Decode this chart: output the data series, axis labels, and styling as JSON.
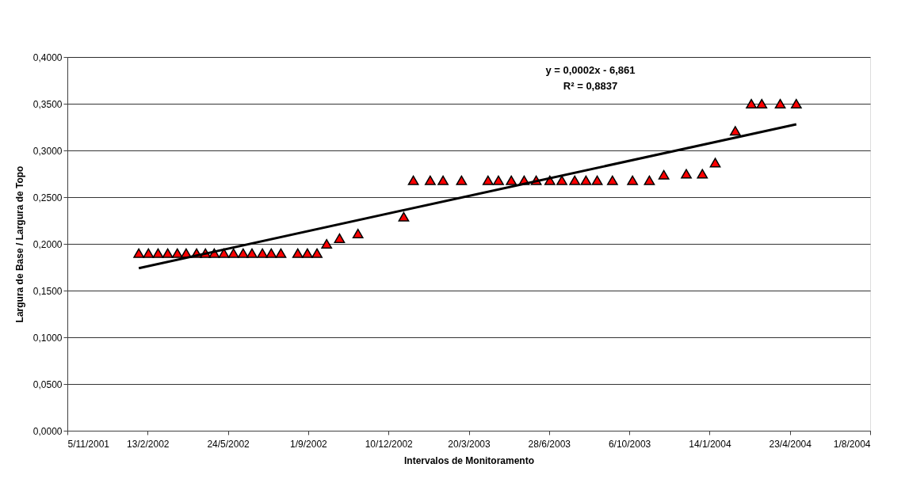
{
  "chart_data": {
    "type": "scatter",
    "xlabel": "Intervalos de Monitoramento",
    "ylabel": "Largura de Base / Largura de Topo",
    "annotations": [
      "y = 0,0002x - 6,861",
      "R² = 0,8837"
    ],
    "xlim": [
      "2001-11-05",
      "2004-08-01"
    ],
    "xticks": [
      {
        "value": "2001-11-05",
        "label": "5/11/2001"
      },
      {
        "value": "2002-02-13",
        "label": "13/2/2002"
      },
      {
        "value": "2002-05-24",
        "label": "24/5/2002"
      },
      {
        "value": "2002-09-01",
        "label": "1/9/2002"
      },
      {
        "value": "2002-12-10",
        "label": "10/12/2002"
      },
      {
        "value": "2003-03-20",
        "label": "20/3/2003"
      },
      {
        "value": "2003-06-28",
        "label": "28/6/2003"
      },
      {
        "value": "2003-10-06",
        "label": "6/10/2003"
      },
      {
        "value": "2004-01-14",
        "label": "14/1/2004"
      },
      {
        "value": "2004-04-23",
        "label": "23/4/2004"
      },
      {
        "value": "2004-08-01",
        "label": "1/8/2004"
      }
    ],
    "ylim": [
      0,
      0.4
    ],
    "yticks": [
      {
        "value": 0,
        "label": "0,0000"
      },
      {
        "value": 0.05,
        "label": "0,0500"
      },
      {
        "value": 0.1,
        "label": "0,1000"
      },
      {
        "value": 0.15,
        "label": "0,1500"
      },
      {
        "value": 0.2,
        "label": "0,2000"
      },
      {
        "value": 0.25,
        "label": "0,2500"
      },
      {
        "value": 0.3,
        "label": "0,3000"
      },
      {
        "value": 0.35,
        "label": "0,3500"
      },
      {
        "value": 0.4,
        "label": "0,4000"
      }
    ],
    "grid": "y",
    "legend": false,
    "series": [
      {
        "marker": "triangle",
        "color": "#ff0000",
        "x": [
          "2002-02-02",
          "2002-02-14",
          "2002-02-26",
          "2002-03-10",
          "2002-03-22",
          "2002-04-02",
          "2002-04-15",
          "2002-04-26",
          "2002-05-07",
          "2002-05-19",
          "2002-05-31",
          "2002-06-12",
          "2002-06-23",
          "2002-07-06",
          "2002-07-17",
          "2002-07-29",
          "2002-08-19",
          "2002-08-31",
          "2002-09-12",
          "2002-09-24",
          "2002-10-10",
          "2002-11-02",
          "2002-12-29",
          "2003-01-10",
          "2003-01-31",
          "2003-02-16",
          "2003-03-11",
          "2003-04-13",
          "2003-04-26",
          "2003-05-12",
          "2003-05-28",
          "2003-06-12",
          "2003-06-29",
          "2003-07-14",
          "2003-07-30",
          "2003-08-13",
          "2003-08-27",
          "2003-09-15",
          "2003-10-10",
          "2003-10-31",
          "2003-11-18",
          "2003-12-16",
          "2004-01-05",
          "2004-01-21",
          "2004-02-15",
          "2004-03-06",
          "2004-03-19",
          "2004-04-11",
          "2004-05-01"
        ],
        "values": [
          0.19,
          0.19,
          0.19,
          0.19,
          0.19,
          0.19,
          0.19,
          0.19,
          0.19,
          0.19,
          0.19,
          0.19,
          0.19,
          0.19,
          0.19,
          0.19,
          0.19,
          0.19,
          0.19,
          0.2,
          0.206,
          0.211,
          0.229,
          0.268,
          0.268,
          0.268,
          0.268,
          0.268,
          0.268,
          0.268,
          0.268,
          0.268,
          0.268,
          0.268,
          0.268,
          0.268,
          0.268,
          0.268,
          0.268,
          0.268,
          0.274,
          0.275,
          0.275,
          0.287,
          0.321,
          0.35,
          0.35,
          0.35,
          0.35
        ]
      },
      {
        "type": "line",
        "color": "#000000",
        "x": [
          "2002-02-02",
          "2004-05-01"
        ],
        "values": [
          0.174,
          0.328
        ]
      }
    ]
  }
}
